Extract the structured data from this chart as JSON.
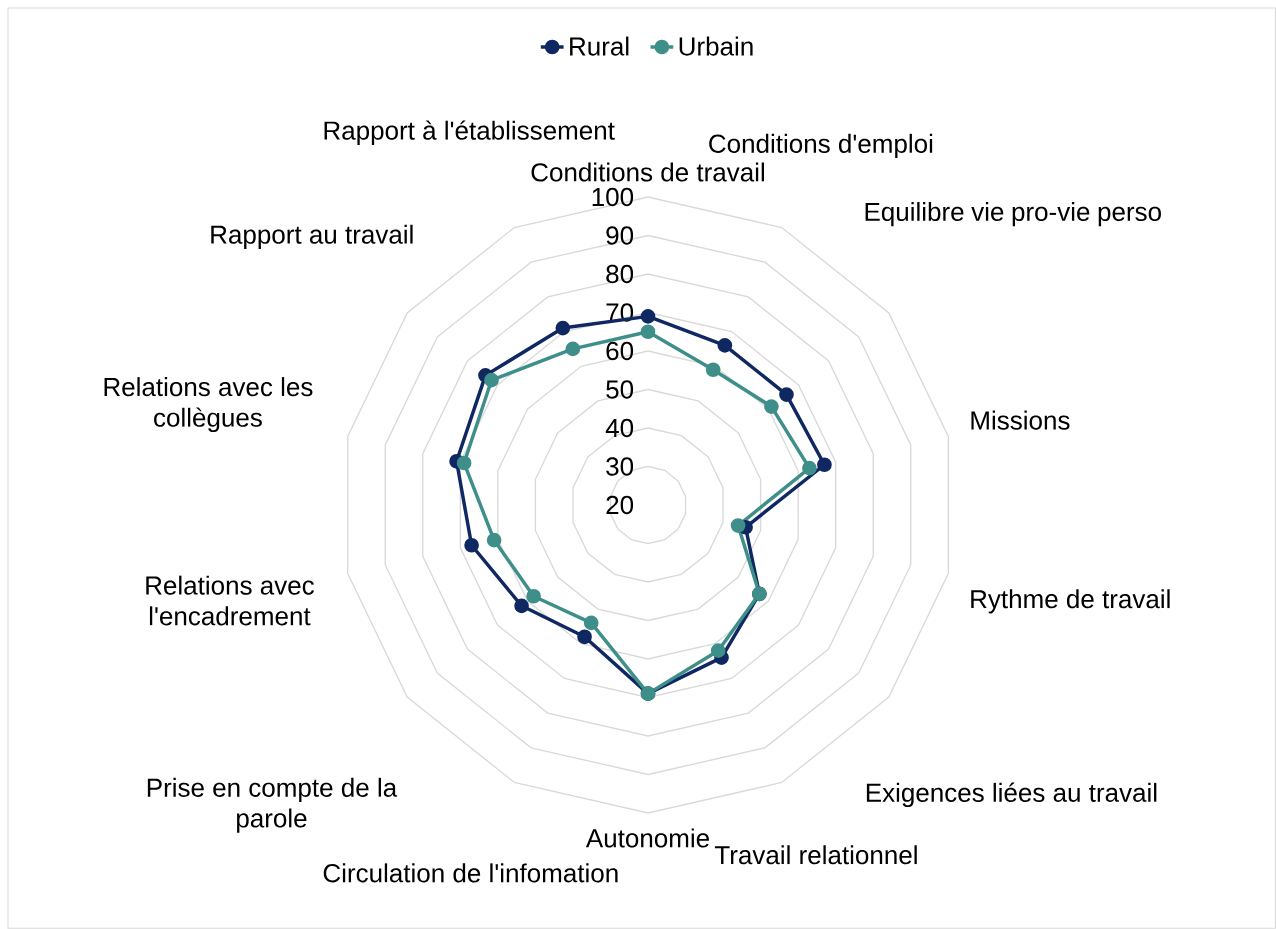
{
  "chart_data": {
    "type": "radar",
    "categories": [
      "Conditions de travail",
      "Conditions d'emploi",
      "Equilibre vie pro-vie perso",
      "Missions",
      "Rythme de travail",
      "Exigences liées au travail",
      "Travail relationnel",
      "Autonomie",
      "Circulation de l'infomation",
      "Prise en compte de la parole",
      "Relations avec l'encadrement",
      "Relations avec les collègues",
      "Rapport au travail",
      "Rapport à l'établissement"
    ],
    "series": [
      {
        "name": "Rural",
        "color": "#0f2862",
        "values": [
          69,
          66,
          66,
          67,
          46,
          57,
          64,
          69,
          58,
          62,
          67,
          71,
          74,
          71
        ]
      },
      {
        "name": "Urbain",
        "color": "#3e8e8a",
        "values": [
          65,
          59,
          61,
          63,
          44,
          57,
          62,
          69,
          54,
          58,
          61,
          69,
          72,
          65
        ]
      }
    ],
    "ylim": [
      20,
      100
    ],
    "yticks": [
      20,
      30,
      40,
      50,
      60,
      70,
      80,
      90,
      100
    ],
    "grid": true,
    "legend": "top",
    "marker": "circle"
  }
}
